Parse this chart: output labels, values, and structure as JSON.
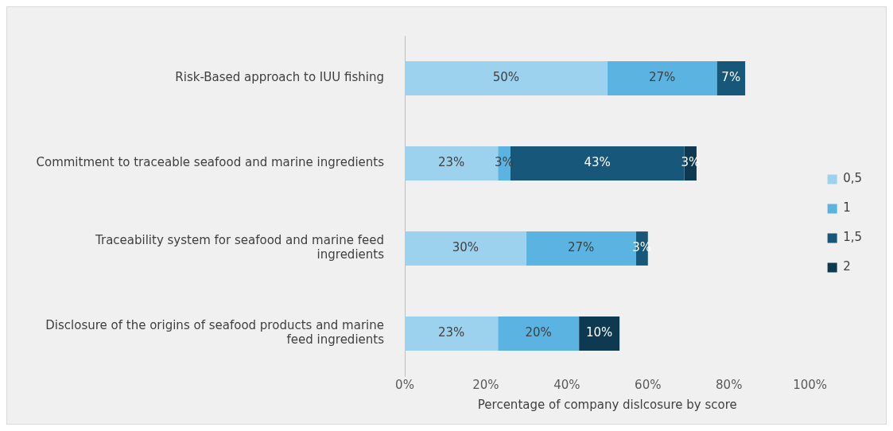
{
  "chart_data": {
    "type": "bar",
    "orientation": "horizontal",
    "stacked": true,
    "xlabel": "Percentage of company dislcosure by score",
    "categories": [
      "Risk-Based approach to IUU fishing",
      "Commitment to traceable seafood and marine ingredients",
      "Traceability system for seafood and marine feed ingredients",
      "Disclosure of the origins of seafood products and marine feed ingredients"
    ],
    "series": [
      {
        "name": "0,5",
        "color": "#9dd2ef",
        "values": [
          50,
          23,
          30,
          23
        ],
        "value_labels": [
          "50%",
          "23%",
          "30%",
          "23%"
        ]
      },
      {
        "name": "1",
        "color": "#5ab3e0",
        "values": [
          27,
          3,
          27,
          20
        ],
        "value_labels": [
          "27%",
          "3%",
          "27%",
          "20%"
        ]
      },
      {
        "name": "1,5",
        "color": "#17577a",
        "values": [
          7,
          43,
          3,
          null
        ],
        "value_labels": [
          "7%",
          "43%",
          "3%",
          null
        ]
      },
      {
        "name": "2",
        "color": "#0d3a51",
        "values": [
          null,
          3,
          null,
          10
        ],
        "value_labels": [
          null,
          "3%",
          null,
          "10%"
        ]
      }
    ],
    "xlim": [
      0,
      100
    ],
    "xticks": [
      {
        "value": 0,
        "label": "0%"
      },
      {
        "value": 20,
        "label": "20%"
      },
      {
        "value": 40,
        "label": "40%"
      },
      {
        "value": 60,
        "label": "60%"
      },
      {
        "value": 80,
        "label": "80%"
      },
      {
        "value": 100,
        "label": "100%"
      }
    ],
    "grid": false,
    "legend": "right"
  }
}
